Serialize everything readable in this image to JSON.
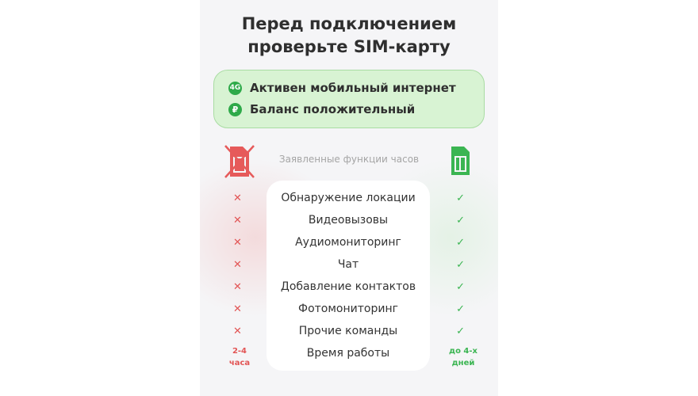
{
  "title": {
    "line1": "Перед подключением",
    "line2": "проверьте SIM-карту"
  },
  "requirements": [
    {
      "icon": "4g-signal-icon",
      "glyph": "4G",
      "label": "Активен мобильный интернет"
    },
    {
      "icon": "ruble-icon",
      "glyph": "₽",
      "label": "Баланс положительный"
    }
  ],
  "subtitle": "Заявленные функции часов",
  "colors": {
    "no": "#e25555",
    "yes": "#3bb552",
    "box": "#d8f3d3"
  },
  "features": [
    "Обнаружение локации",
    "Видеовызовы",
    "Аудиомониторинг",
    "Чат",
    "Добавление контактов",
    "Фотомониторинг",
    "Прочие команды",
    "Время работы"
  ],
  "marks": {
    "no": "✕",
    "yes": "✓"
  },
  "runtime": {
    "without_sim": {
      "line1": "2-4",
      "line2": "часа"
    },
    "with_sim": {
      "line1": "до 4-х",
      "line2": "дней"
    }
  }
}
